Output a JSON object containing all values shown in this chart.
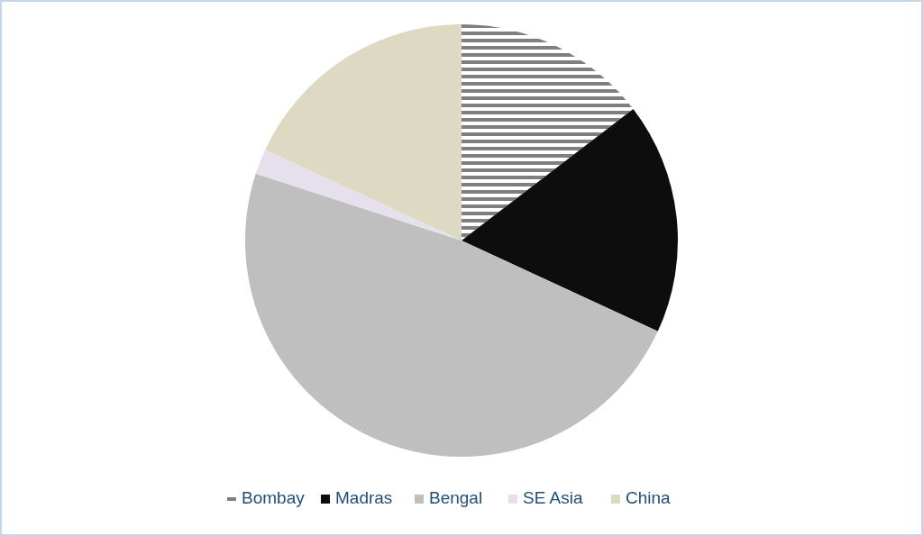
{
  "chart_data": {
    "type": "pie",
    "categories": [
      "Bombay",
      "Madras",
      "Bengal",
      "SE Asia",
      "China"
    ],
    "values": [
      14.6,
      17.3,
      48.1,
      1.9,
      18.1
    ],
    "colors": [
      "#7f7f7f",
      "#0d0d0d",
      "#bfbfbf",
      "#e6e0ec",
      "#ddd9c3"
    ],
    "legend": "bottom"
  }
}
